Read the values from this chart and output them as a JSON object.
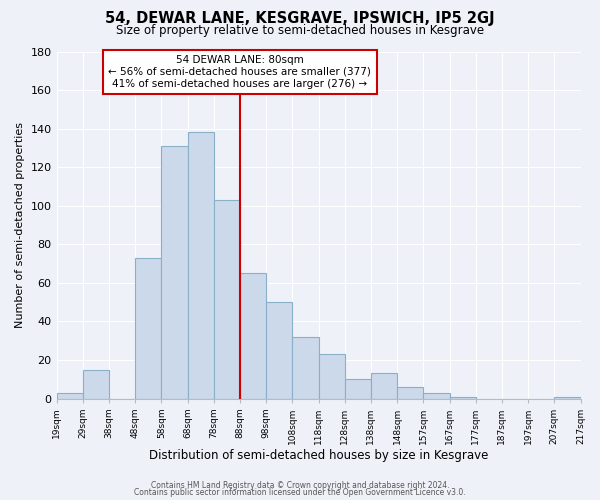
{
  "title": "54, DEWAR LANE, KESGRAVE, IPSWICH, IP5 2GJ",
  "subtitle": "Size of property relative to semi-detached houses in Kesgrave",
  "xlabel": "Distribution of semi-detached houses by size in Kesgrave",
  "ylabel": "Number of semi-detached properties",
  "bar_color": "#ccd9ea",
  "bar_edge_color": "#8aafc8",
  "vline_x": 7,
  "vline_color": "#cc0000",
  "annotation_title": "54 DEWAR LANE: 80sqm",
  "annotation_line1": "← 56% of semi-detached houses are smaller (377)",
  "annotation_line2": "41% of semi-detached houses are larger (276) →",
  "annotation_box_color": "#ffffff",
  "annotation_box_edge": "#cc0000",
  "values": [
    3,
    15,
    0,
    73,
    131,
    138,
    103,
    65,
    50,
    32,
    23,
    10,
    13,
    6,
    3,
    1,
    0,
    0,
    0,
    1
  ],
  "tick_labels": [
    "19sqm",
    "29sqm",
    "38sqm",
    "48sqm",
    "58sqm",
    "68sqm",
    "78sqm",
    "88sqm",
    "98sqm",
    "108sqm",
    "118sqm",
    "128sqm",
    "138sqm",
    "148sqm",
    "157sqm",
    "167sqm",
    "177sqm",
    "187sqm",
    "197sqm",
    "207sqm",
    "217sqm"
  ],
  "ylim": [
    0,
    180
  ],
  "yticks": [
    0,
    20,
    40,
    60,
    80,
    100,
    120,
    140,
    160,
    180
  ],
  "footer1": "Contains HM Land Registry data © Crown copyright and database right 2024.",
  "footer2": "Contains public sector information licensed under the Open Government Licence v3.0.",
  "bg_color": "#eef2f8",
  "grid_color": "#ffffff"
}
